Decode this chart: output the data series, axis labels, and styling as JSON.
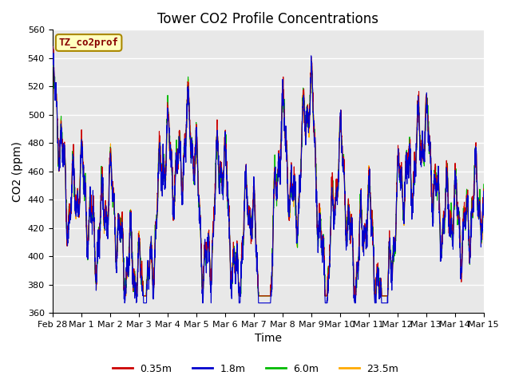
{
  "title": "Tower CO2 Profile Concentrations",
  "xlabel": "Time",
  "ylabel": "CO2 (ppm)",
  "ylim": [
    360,
    560
  ],
  "yticks": [
    360,
    380,
    400,
    420,
    440,
    460,
    480,
    500,
    520,
    540,
    560
  ],
  "colors": {
    "0.35m": "#cc0000",
    "1.8m": "#0000cc",
    "6.0m": "#00bb00",
    "23.5m": "#ffaa00"
  },
  "annotation_text": "TZ_co2prof",
  "annotation_color": "#880000",
  "annotation_bg": "#ffffc0",
  "annotation_border": "#aa8800",
  "bg_color": "#e8e8e8",
  "fig_color": "#ffffff",
  "title_fontsize": 12,
  "axis_label_fontsize": 10,
  "tick_fontsize": 8,
  "legend_fontsize": 9,
  "x_tick_labels": [
    "Feb 28",
    "Mar 1",
    "Mar 2",
    "Mar 3",
    "Mar 4",
    "Mar 5",
    "Mar 6",
    "Mar 7",
    "Mar 8",
    "Mar 9",
    "Mar 10",
    "Mar 11",
    "Mar 12",
    "Mar 13",
    "Mar 14",
    "Mar 15"
  ],
  "x_tick_positions": [
    0,
    1,
    2,
    3,
    4,
    5,
    6,
    7,
    8,
    9,
    10,
    11,
    12,
    13,
    14,
    15
  ]
}
